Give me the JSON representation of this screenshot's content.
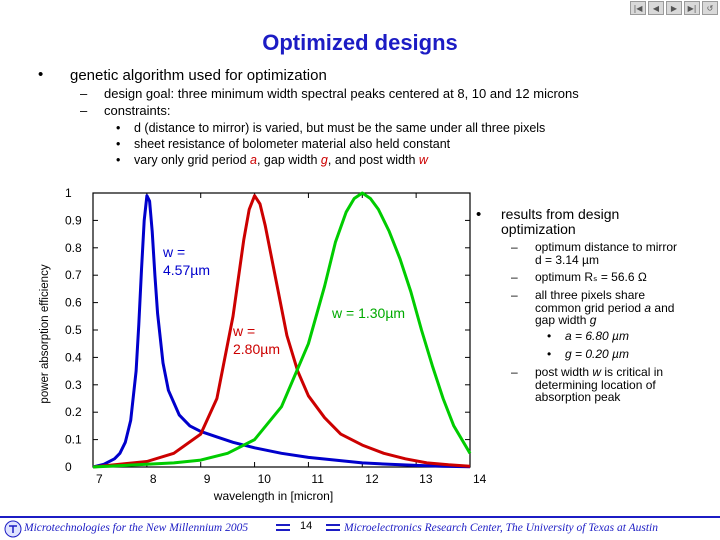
{
  "nav": {
    "icons": [
      "first-slide-icon",
      "previous-slide-icon",
      "next-slide-icon",
      "last-slide-icon",
      "return-icon"
    ]
  },
  "title": "Optimized designs",
  "bullet_main": {
    "text": "genetic algorithm used for optimization",
    "sub": [
      "design goal: three minimum width spectral peaks centered at 8, 10 and 12 microns",
      "constraints:"
    ],
    "constraints": {
      "c1": "d (distance to mirror) is varied, but must be the same under all three pixels",
      "c2": "sheet resistance of bolometer material also held constant",
      "c3_pre": "vary only grid period ",
      "c3_a": "a",
      "c3_mid1": ", gap width ",
      "c3_g": "g",
      "c3_mid2": ", and post width ",
      "c3_w": "w"
    }
  },
  "results": {
    "heading": "results from design optimization",
    "r1": "optimum distance to mirror d = 3.14 µm",
    "r2": "optimum Rₛ = 56.6 Ω",
    "r3_pre": "all three pixels share common grid period ",
    "r3_a": "a",
    "r3_mid": " and gap width ",
    "r3_g": "g",
    "r3_s1": "a = 6.80 µm",
    "r3_s2": "g = 0.20 µm",
    "r4_pre": "post width ",
    "r4_w": "w",
    "r4_post": " is critical in determining location of absorption peak"
  },
  "chart_data": {
    "type": "line",
    "xlabel": "wavelength in [micron]",
    "ylabel": "power absorption efficiency",
    "xlim": [
      7,
      14
    ],
    "ylim": [
      0,
      1
    ],
    "xticks": [
      "7",
      "8",
      "9",
      "10",
      "11",
      "12",
      "13",
      "14"
    ],
    "yticks": [
      "0",
      "0.1",
      "0.2",
      "0.3",
      "0.4",
      "0.5",
      "0.6",
      "0.7",
      "0.8",
      "0.9",
      "1"
    ],
    "annotations": [
      {
        "text": "w = 4.57µm",
        "color": "#0000cc"
      },
      {
        "text": "w = 2.80µm",
        "color": "#cc0000"
      },
      {
        "text": "w = 1.30µm",
        "color": "#00aa00"
      }
    ],
    "series": [
      {
        "color": "#0000cc",
        "x": [
          7.0,
          7.2,
          7.4,
          7.5,
          7.6,
          7.7,
          7.8,
          7.85,
          7.9,
          7.95,
          8.0,
          8.05,
          8.1,
          8.15,
          8.2,
          8.3,
          8.4,
          8.6,
          8.8,
          9.0,
          9.3,
          9.6,
          10.0,
          10.5,
          11.0,
          11.5,
          12.0,
          12.5,
          13.0,
          13.5,
          14.0
        ],
        "y": [
          0.0,
          0.01,
          0.03,
          0.05,
          0.09,
          0.17,
          0.35,
          0.52,
          0.72,
          0.9,
          0.99,
          0.97,
          0.86,
          0.7,
          0.56,
          0.38,
          0.28,
          0.19,
          0.15,
          0.13,
          0.11,
          0.09,
          0.07,
          0.05,
          0.035,
          0.025,
          0.015,
          0.01,
          0.006,
          0.003,
          0.001
        ]
      },
      {
        "color": "#cc0000",
        "x": [
          7.0,
          8.0,
          8.5,
          9.0,
          9.3,
          9.6,
          9.8,
          9.9,
          10.0,
          10.1,
          10.2,
          10.4,
          10.6,
          10.8,
          11.0,
          11.3,
          11.6,
          12.0,
          12.4,
          12.8,
          13.2,
          13.6,
          14.0
        ],
        "y": [
          0.0,
          0.02,
          0.05,
          0.12,
          0.25,
          0.55,
          0.83,
          0.94,
          0.99,
          0.96,
          0.88,
          0.68,
          0.48,
          0.35,
          0.26,
          0.18,
          0.12,
          0.08,
          0.05,
          0.03,
          0.015,
          0.008,
          0.003
        ]
      },
      {
        "color": "#00cc00",
        "x": [
          7.0,
          8.0,
          8.5,
          9.0,
          9.5,
          10.0,
          10.5,
          11.0,
          11.3,
          11.5,
          11.7,
          11.85,
          12.0,
          12.15,
          12.3,
          12.5,
          12.7,
          12.9,
          13.1,
          13.3,
          13.5,
          13.7,
          14.0
        ],
        "y": [
          0.0,
          0.01,
          0.015,
          0.025,
          0.05,
          0.1,
          0.22,
          0.45,
          0.66,
          0.82,
          0.93,
          0.98,
          1.0,
          0.98,
          0.94,
          0.86,
          0.76,
          0.64,
          0.5,
          0.37,
          0.25,
          0.15,
          0.05
        ]
      }
    ]
  },
  "footer": {
    "left": "Microtechnologies for the New Millennium 2005",
    "page": "14",
    "right": "Microelectronics Research Center, The University of Texas at Austin"
  }
}
